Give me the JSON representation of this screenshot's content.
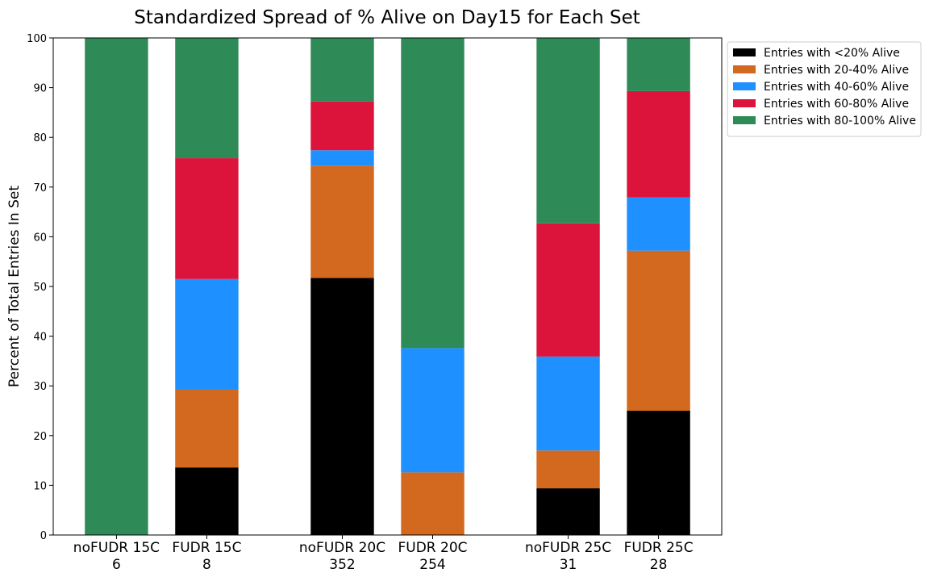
{
  "chart_data": {
    "type": "bar",
    "stacked": true,
    "title": "Standardized Spread of % Alive on Day15 for Each Set",
    "xlabel": "",
    "ylabel": "Percent of Total Entries In Set",
    "ylim": [
      0,
      100
    ],
    "yticks": [
      "0",
      "10",
      "20",
      "30",
      "40",
      "50",
      "60",
      "70",
      "80",
      "90",
      "100"
    ],
    "grid": false,
    "legend_position": "outside-top-right",
    "categories": [
      {
        "name": "noFUDR 15C",
        "count": "6"
      },
      {
        "name": "FUDR 15C",
        "count": "8"
      },
      {
        "name": "noFUDR 20C",
        "count": "352"
      },
      {
        "name": "FUDR 20C",
        "count": "254"
      },
      {
        "name": "noFUDR 25C",
        "count": "31"
      },
      {
        "name": "FUDR 25C",
        "count": "28"
      }
    ],
    "category_positions": [
      0,
      1,
      2.5,
      3.5,
      5,
      6
    ],
    "series": [
      {
        "name": "Entries with <20% Alive",
        "color": "#000000",
        "values": [
          0,
          13.6,
          51.7,
          0,
          9.4,
          25.0
        ]
      },
      {
        "name": "Entries with 20-40% Alive",
        "color": "#d2691e",
        "values": [
          0,
          15.7,
          22.6,
          12.6,
          7.6,
          32.2
        ]
      },
      {
        "name": "Entries with 40-60% Alive",
        "color": "#1e90ff",
        "values": [
          0,
          22.2,
          3.1,
          25.0,
          18.9,
          10.7
        ]
      },
      {
        "name": "Entries with 60-80% Alive",
        "color": "#dc143c",
        "values": [
          0,
          24.3,
          9.8,
          0,
          26.8,
          21.4
        ]
      },
      {
        "name": "Entries with 80-100% Alive",
        "color": "#2e8b57",
        "values": [
          100,
          24.2,
          12.8,
          62.4,
          37.3,
          10.7
        ]
      }
    ]
  }
}
